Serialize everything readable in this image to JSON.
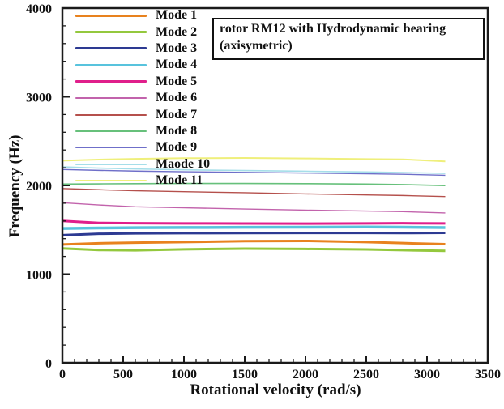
{
  "figure": {
    "background": "#ffffff",
    "axis_color": "#1a1a1a",
    "text_color": "#111111"
  },
  "annotation": {
    "line1": "rotor RM12  with Hydrodynamic bearing",
    "line2": "(axisymetric)"
  },
  "chart_data": {
    "type": "line",
    "title": "",
    "xlabel": "Rotational velocity (rad/s)",
    "ylabel": "Frequency (Hz)",
    "xlim": [
      0,
      3500
    ],
    "ylim": [
      0,
      4000
    ],
    "x_major_ticks": [
      0,
      500,
      1000,
      1500,
      2000,
      2500,
      3000,
      3500
    ],
    "x_minor_step": 100,
    "y_major_ticks": [
      0,
      1000,
      2000,
      3000,
      4000
    ],
    "y_minor_step": 200,
    "grid": false,
    "legend_position": "top-left-inside",
    "x": [
      0,
      300,
      600,
      1000,
      1500,
      2000,
      2500,
      2800,
      3150
    ],
    "series": [
      {
        "name": "Mode 1",
        "color": "#E8821E",
        "width": 3,
        "values": [
          1335,
          1348,
          1355,
          1362,
          1372,
          1375,
          1362,
          1350,
          1338
        ]
      },
      {
        "name": "Mode 2",
        "color": "#94C83D",
        "width": 3,
        "values": [
          1290,
          1272,
          1268,
          1280,
          1288,
          1284,
          1278,
          1270,
          1262
        ]
      },
      {
        "name": "Mode 3",
        "color": "#2D3A92",
        "width": 3,
        "values": [
          1440,
          1455,
          1460,
          1462,
          1464,
          1465,
          1465,
          1463,
          1466
        ]
      },
      {
        "name": "Mode 4",
        "color": "#58C3DD",
        "width": 3.5,
        "values": [
          1515,
          1520,
          1524,
          1526,
          1528,
          1530,
          1532,
          1530,
          1525
        ]
      },
      {
        "name": "Mode 5",
        "color": "#E01F8B",
        "width": 3,
        "values": [
          1600,
          1578,
          1574,
          1572,
          1571,
          1570,
          1572,
          1574,
          1572
        ]
      },
      {
        "name": "Mode 6",
        "color": "#C263AC",
        "width": 1.4,
        "values": [
          1805,
          1780,
          1760,
          1748,
          1735,
          1722,
          1712,
          1705,
          1690
        ]
      },
      {
        "name": "Mode 7",
        "color": "#B5504C",
        "width": 1.4,
        "values": [
          1965,
          1952,
          1940,
          1930,
          1918,
          1905,
          1893,
          1887,
          1875
        ]
      },
      {
        "name": "Mode 8",
        "color": "#67C07B",
        "width": 1.6,
        "values": [
          2015,
          2018,
          2020,
          2022,
          2022,
          2020,
          2015,
          2010,
          1998
        ]
      },
      {
        "name": "Mode 9",
        "color": "#6F6FC9",
        "width": 1.4,
        "values": [
          2180,
          2170,
          2162,
          2155,
          2148,
          2140,
          2132,
          2126,
          2115
        ]
      },
      {
        "name": "Maode 10",
        "color": "#A5DEE9",
        "width": 1.6,
        "values": [
          2210,
          2196,
          2186,
          2176,
          2168,
          2160,
          2152,
          2146,
          2136
        ]
      },
      {
        "name": "Mode 11",
        "color": "#EFEF7B",
        "width": 2,
        "values": [
          2280,
          2292,
          2300,
          2308,
          2310,
          2305,
          2298,
          2295,
          2272
        ]
      }
    ]
  }
}
